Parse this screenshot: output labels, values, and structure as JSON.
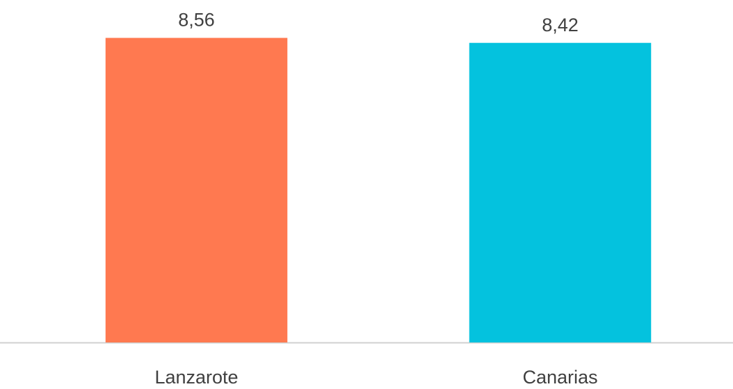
{
  "chart_data": {
    "type": "bar",
    "categories": [
      "Lanzarote",
      "Canarias"
    ],
    "values": [
      8.56,
      8.42
    ],
    "value_labels": [
      "8,56",
      "8,42"
    ],
    "colors": [
      "#ff7950",
      "#04c2de"
    ],
    "ylim": [
      0,
      9
    ]
  }
}
